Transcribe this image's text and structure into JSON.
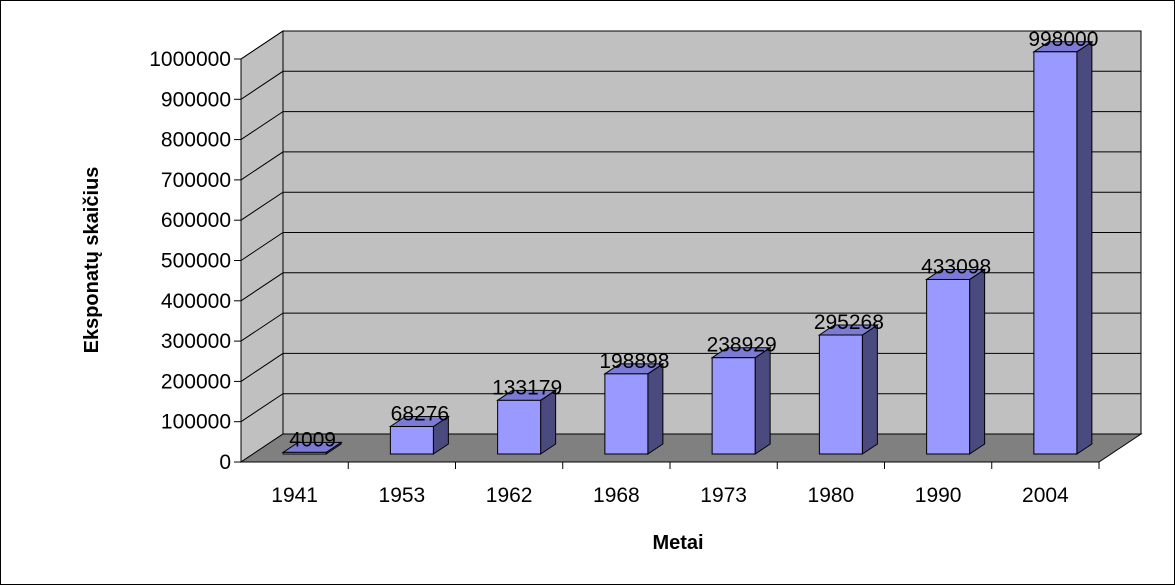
{
  "chart_data": {
    "type": "bar",
    "style": "3d-column",
    "categories": [
      "1941",
      "1953",
      "1962",
      "1968",
      "1973",
      "1980",
      "1990",
      "2004"
    ],
    "values": [
      4009,
      68276,
      133179,
      198898,
      238929,
      295268,
      433098,
      998000
    ],
    "data_labels": [
      "4009",
      "68276",
      "133179",
      "198898",
      "238929",
      "295268",
      "433098",
      "998000"
    ],
    "xlabel": "Metai",
    "ylabel": "Eksponatų skaičius",
    "ylim": [
      0,
      1000000
    ],
    "yticks": [
      "0",
      "100000",
      "200000",
      "300000",
      "400000",
      "500000",
      "600000",
      "700000",
      "800000",
      "900000",
      "1000000"
    ],
    "grid": true,
    "legend": "none",
    "colors": {
      "bar_front": "#9999ff",
      "bar_side": "#4a4a7e",
      "bar_top": "#7b7bd6",
      "wall": "#c0c0c0",
      "floor": "#808080",
      "gridline": "#000000"
    }
  }
}
